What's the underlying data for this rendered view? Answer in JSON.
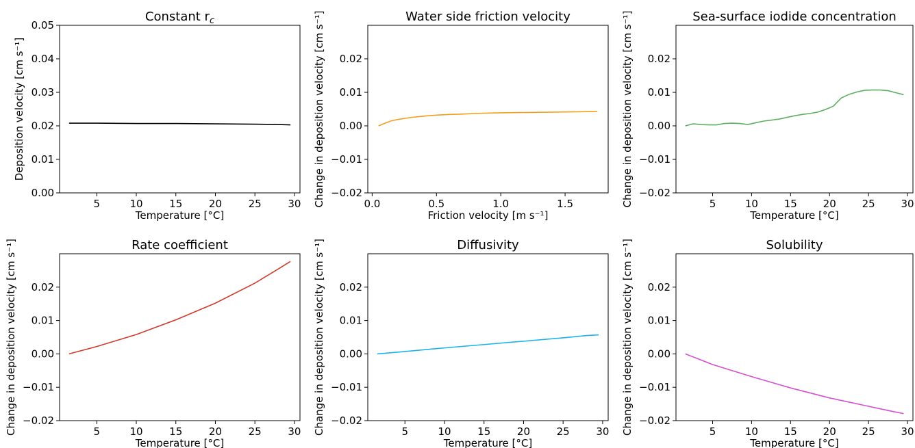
{
  "chart_data": [
    {
      "type": "line",
      "title": "Constant r",
      "title_subscript": "c",
      "xlabel": "Temperature [°C]",
      "ylabel": "Deposition velocity [cm s⁻¹]",
      "xlim": [
        0.3,
        30.7
      ],
      "ylim": [
        0.0,
        0.05
      ],
      "xticks": [
        5,
        10,
        15,
        20,
        25,
        30
      ],
      "xtick_labels": [
        "5",
        "10",
        "15",
        "20",
        "25",
        "30"
      ],
      "yticks": [
        0.0,
        0.01,
        0.02,
        0.03,
        0.04,
        0.05
      ],
      "ytick_labels": [
        "0.00",
        "0.01",
        "0.02",
        "0.03",
        "0.04",
        "0.05"
      ],
      "grid": false,
      "series": [
        {
          "color": "#000000",
          "x": [
            1.5,
            5,
            10,
            15,
            20,
            25,
            28,
            29.5
          ],
          "y": [
            0.0208,
            0.0208,
            0.0207,
            0.0207,
            0.0206,
            0.0205,
            0.0204,
            0.0203
          ]
        }
      ]
    },
    {
      "type": "line",
      "title": "Water side friction velocity",
      "xlabel": "Friction velocity [m s⁻¹]",
      "ylabel": "Change in deposition velocity [cm s⁻¹]",
      "xlim": [
        -0.034,
        1.835
      ],
      "ylim": [
        -0.02,
        0.03
      ],
      "xticks": [
        0.0,
        0.5,
        1.0,
        1.5
      ],
      "xtick_labels": [
        "0.0",
        "0.5",
        "1.0",
        "1.5"
      ],
      "yticks": [
        -0.02,
        -0.01,
        0.0,
        0.01,
        0.02
      ],
      "ytick_labels": [
        "−0.02",
        "−0.01",
        "0.00",
        "0.01",
        "0.02"
      ],
      "grid": false,
      "series": [
        {
          "color": "#f59c1a",
          "x": [
            0.05,
            0.1,
            0.15,
            0.2,
            0.3,
            0.4,
            0.5,
            0.6,
            0.7,
            0.8,
            0.9,
            1.0,
            1.2,
            1.4,
            1.6,
            1.75
          ],
          "y": [
            0.0,
            0.0008,
            0.0015,
            0.0019,
            0.0025,
            0.0029,
            0.0032,
            0.0034,
            0.0035,
            0.0037,
            0.0038,
            0.0039,
            0.004,
            0.0041,
            0.0042,
            0.0043
          ]
        }
      ]
    },
    {
      "type": "line",
      "title": "Sea-surface iodide concentration",
      "xlabel": "Temperature [°C]",
      "ylabel": "Change in deposition velocity [cm s⁻¹]",
      "xlim": [
        0.3,
        30.7
      ],
      "ylim": [
        -0.02,
        0.03
      ],
      "xticks": [
        5,
        10,
        15,
        20,
        25,
        30
      ],
      "xtick_labels": [
        "5",
        "10",
        "15",
        "20",
        "25",
        "30"
      ],
      "yticks": [
        -0.02,
        -0.01,
        0.0,
        0.01,
        0.02
      ],
      "ytick_labels": [
        "−0.02",
        "−0.01",
        "0.00",
        "0.01",
        "0.02"
      ],
      "grid": false,
      "series": [
        {
          "color": "#5fae5f",
          "x": [
            1.5,
            2.5,
            3.5,
            4.5,
            5.5,
            6.5,
            7.5,
            8.5,
            9.5,
            10.5,
            11.5,
            13.5,
            15.5,
            16.5,
            17.5,
            18.5,
            19.5,
            20.5,
            21.5,
            22.5,
            23.5,
            24.5,
            25.5,
            26.5,
            27.5,
            28.5,
            29.5
          ],
          "y": [
            0.0,
            0.0006,
            0.0004,
            0.0003,
            0.0003,
            0.0007,
            0.0008,
            0.0007,
            0.0004,
            0.0009,
            0.0014,
            0.002,
            0.003,
            0.0034,
            0.0037,
            0.0041,
            0.0049,
            0.0059,
            0.0083,
            0.0094,
            0.0101,
            0.0106,
            0.0107,
            0.0107,
            0.0105,
            0.0099,
            0.0093
          ]
        }
      ]
    },
    {
      "type": "line",
      "title": "Rate coefficient",
      "xlabel": "Temperature [°C]",
      "ylabel": "Change in deposition velocity [cm s⁻¹]",
      "xlim": [
        0.3,
        30.7
      ],
      "ylim": [
        -0.02,
        0.03
      ],
      "xticks": [
        5,
        10,
        15,
        20,
        25,
        30
      ],
      "xtick_labels": [
        "5",
        "10",
        "15",
        "20",
        "25",
        "30"
      ],
      "yticks": [
        -0.02,
        -0.01,
        0.0,
        0.01,
        0.02
      ],
      "ytick_labels": [
        "−0.02",
        "−0.01",
        "0.00",
        "0.01",
        "0.02"
      ],
      "grid": false,
      "series": [
        {
          "color": "#d0392b",
          "x": [
            1.5,
            5,
            10,
            15,
            20,
            25,
            28,
            29.5
          ],
          "y": [
            0.0,
            0.0022,
            0.0058,
            0.0102,
            0.0152,
            0.0212,
            0.0255,
            0.0277
          ]
        }
      ]
    },
    {
      "type": "line",
      "title": "Diffusivity",
      "xlabel": "Temperature [°C]",
      "ylabel": "Change in deposition velocity [cm s⁻¹]",
      "xlim": [
        0.3,
        30.7
      ],
      "ylim": [
        -0.02,
        0.03
      ],
      "xticks": [
        5,
        10,
        15,
        20,
        25,
        30
      ],
      "xtick_labels": [
        "5",
        "10",
        "15",
        "20",
        "25",
        "30"
      ],
      "yticks": [
        -0.02,
        -0.01,
        0.0,
        0.01,
        0.02
      ],
      "ytick_labels": [
        "−0.02",
        "−0.01",
        "0.00",
        "0.01",
        "0.02"
      ],
      "grid": false,
      "series": [
        {
          "color": "#1ab2e8",
          "x": [
            1.5,
            5,
            10,
            15,
            20,
            25,
            28,
            29.5
          ],
          "y": [
            0.0,
            0.0007,
            0.0018,
            0.0028,
            0.0038,
            0.0048,
            0.0055,
            0.0057
          ]
        }
      ]
    },
    {
      "type": "line",
      "title": "Solubility",
      "xlabel": "Temperature [°C]",
      "ylabel": "Change in deposition velocity [cm s⁻¹]",
      "xlim": [
        0.3,
        30.7
      ],
      "ylim": [
        -0.02,
        0.03
      ],
      "xticks": [
        5,
        10,
        15,
        20,
        25,
        30
      ],
      "xtick_labels": [
        "5",
        "10",
        "15",
        "20",
        "25",
        "30"
      ],
      "yticks": [
        -0.02,
        -0.01,
        0.0,
        0.01,
        0.02
      ],
      "ytick_labels": [
        "−0.02",
        "−0.01",
        "0.00",
        "0.01",
        "0.02"
      ],
      "grid": false,
      "series": [
        {
          "color": "#d44fd0",
          "x": [
            1.5,
            5,
            10,
            15,
            20,
            25,
            28,
            29.5
          ],
          "y": [
            0.0,
            -0.0032,
            -0.0068,
            -0.0102,
            -0.0132,
            -0.0157,
            -0.0172,
            -0.0179
          ]
        }
      ]
    }
  ]
}
